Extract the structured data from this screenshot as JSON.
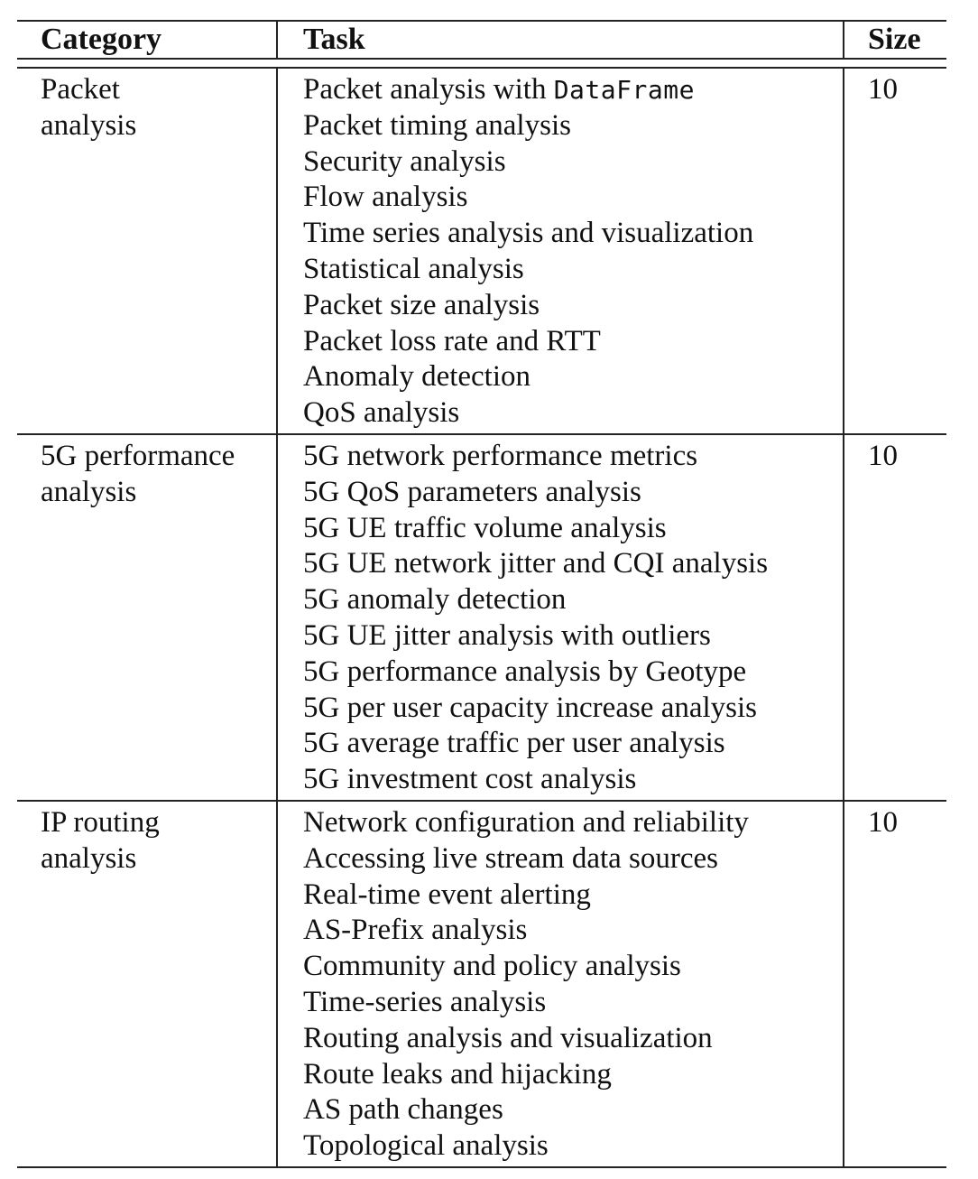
{
  "table": {
    "headers": {
      "category": "Category",
      "task": "Task",
      "size": "Size"
    },
    "groups": [
      {
        "category": "Packet analysis",
        "category_lines": [
          "Packet",
          "analysis"
        ],
        "size": "10",
        "tasks": [
          {
            "text": "Packet analysis with ",
            "code": "DataFrame"
          },
          {
            "text": "Packet timing analysis"
          },
          {
            "text": "Security analysis"
          },
          {
            "text": "Flow analysis"
          },
          {
            "text": "Time series analysis and visualization"
          },
          {
            "text": "Statistical analysis"
          },
          {
            "text": "Packet size analysis"
          },
          {
            "text": "Packet loss rate and RTT"
          },
          {
            "text": "Anomaly detection"
          },
          {
            "text": "QoS analysis"
          }
        ]
      },
      {
        "category": "5G performance analysis",
        "category_lines": [
          "5G performance",
          "analysis"
        ],
        "size": "10",
        "tasks": [
          {
            "text": "5G network performance metrics"
          },
          {
            "text": "5G QoS parameters analysis"
          },
          {
            "text": "5G UE traffic volume analysis"
          },
          {
            "text": "5G UE network jitter and CQI analysis"
          },
          {
            "text": "5G anomaly detection"
          },
          {
            "text": "5G UE jitter analysis with outliers"
          },
          {
            "text": "5G performance analysis by Geotype"
          },
          {
            "text": "5G per user capacity increase analysis"
          },
          {
            "text": "5G average traffic per user analysis"
          },
          {
            "text": "5G investment cost analysis"
          }
        ]
      },
      {
        "category": "IP routing analysis",
        "category_lines": [
          "IP routing",
          "analysis"
        ],
        "size": "10",
        "tasks": [
          {
            "text": "Network configuration and reliability"
          },
          {
            "text": "Accessing live stream data sources"
          },
          {
            "text": "Real-time event alerting"
          },
          {
            "text": "AS-Prefix analysis"
          },
          {
            "text": "Community and policy analysis"
          },
          {
            "text": "Time-series analysis"
          },
          {
            "text": "Routing analysis and visualization"
          },
          {
            "text": "Route leaks and hijacking"
          },
          {
            "text": "AS path changes"
          },
          {
            "text": "Topological analysis"
          }
        ]
      }
    ]
  }
}
